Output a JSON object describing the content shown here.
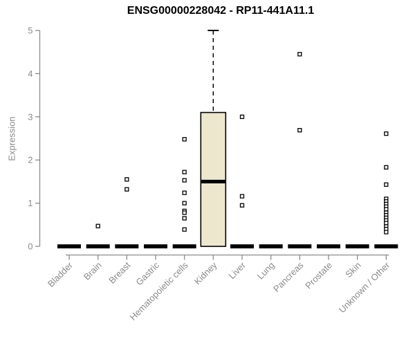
{
  "chart_data": {
    "type": "boxplot",
    "title": "ENSG00000228042 - RP11-441A11.1",
    "ylabel": "Expression",
    "xlabel": "",
    "ylim": [
      0,
      5
    ],
    "yticks": [
      0,
      1,
      2,
      3,
      4,
      5
    ],
    "grid": false,
    "legend": false,
    "colors": {
      "box_fill": "#EDE7CE",
      "box_stroke": "#000000",
      "axis": "#8B8B8B",
      "title": "#000000",
      "outlier_fill": "#FFFFFF"
    },
    "categories": [
      "Bladder",
      "Brain",
      "Breast",
      "Gastric",
      "Hematopoietic cells",
      "Kidney",
      "Liver",
      "Lung",
      "Pancreas",
      "Prostate",
      "Skin",
      "Unknown / Other"
    ],
    "boxes": [
      {
        "category": "Bladder",
        "min": 0,
        "q1": 0,
        "median": 0,
        "q3": 0,
        "max": 0,
        "outliers": []
      },
      {
        "category": "Brain",
        "min": 0,
        "q1": 0,
        "median": 0,
        "q3": 0,
        "max": 0,
        "outliers": [
          0.47
        ]
      },
      {
        "category": "Breast",
        "min": 0,
        "q1": 0,
        "median": 0,
        "q3": 0,
        "max": 0,
        "outliers": [
          1.55,
          1.32
        ]
      },
      {
        "category": "Gastric",
        "min": 0,
        "q1": 0,
        "median": 0,
        "q3": 0,
        "max": 0,
        "outliers": []
      },
      {
        "category": "Hematopoietic cells",
        "min": 0,
        "q1": 0,
        "median": 0,
        "q3": 0,
        "max": 0,
        "outliers": [
          2.48,
          1.72,
          1.53,
          1.24,
          1.0,
          0.82,
          0.78,
          0.65,
          0.39
        ]
      },
      {
        "category": "Kidney",
        "min": 0,
        "q1": 0,
        "median": 1.5,
        "q3": 3.1,
        "max": 5.0,
        "outliers": []
      },
      {
        "category": "Liver",
        "min": 0,
        "q1": 0,
        "median": 0,
        "q3": 0,
        "max": 0,
        "outliers": [
          3.0,
          1.16,
          0.95
        ]
      },
      {
        "category": "Lung",
        "min": 0,
        "q1": 0,
        "median": 0,
        "q3": 0,
        "max": 0,
        "outliers": []
      },
      {
        "category": "Pancreas",
        "min": 0,
        "q1": 0,
        "median": 0,
        "q3": 0,
        "max": 0,
        "outliers": [
          4.45,
          2.69
        ]
      },
      {
        "category": "Prostate",
        "min": 0,
        "q1": 0,
        "median": 0,
        "q3": 0,
        "max": 0,
        "outliers": []
      },
      {
        "category": "Skin",
        "min": 0,
        "q1": 0,
        "median": 0,
        "q3": 0,
        "max": 0,
        "outliers": []
      },
      {
        "category": "Unknown / Other",
        "min": 0,
        "q1": 0,
        "median": 0,
        "q3": 0,
        "max": 0,
        "outliers": [
          2.61,
          1.83,
          1.43,
          1.1,
          1.04,
          0.98,
          0.92,
          0.86,
          0.78,
          0.72,
          0.66,
          0.6,
          0.54,
          0.46,
          0.4,
          0.33
        ]
      }
    ]
  }
}
